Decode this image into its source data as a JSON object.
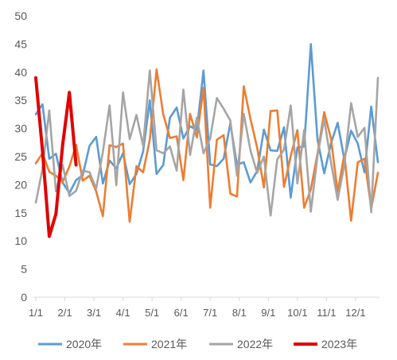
{
  "chart_data": {
    "type": "line",
    "ylim": [
      0,
      50
    ],
    "yticks": [
      0,
      5,
      10,
      15,
      20,
      25,
      30,
      35,
      40,
      45,
      50
    ],
    "xtick_labels": [
      "1/1",
      "2/1",
      "3/1",
      "4/1",
      "5/1",
      "6/1",
      "7/1",
      "8/1",
      "9/1",
      "10/1",
      "11/1",
      "12/1"
    ],
    "n_weeks": 52,
    "grid": false,
    "legend_position": "bottom",
    "series": [
      {
        "name": "2020年",
        "color": "#5B9BD5",
        "values": [
          32.5,
          34.3,
          24.6,
          25.5,
          20.4,
          18.5,
          20.8,
          21.7,
          26.9,
          28.5,
          20.2,
          24.3,
          22.9,
          25.6,
          20.1,
          21.9,
          25.9,
          35.0,
          21.9,
          23.5,
          31.9,
          33.7,
          28.2,
          30.4,
          29.7,
          40.3,
          23.6,
          23.3,
          24.6,
          30.9,
          23.5,
          24.0,
          20.4,
          22.4,
          29.8,
          26.1,
          26.0,
          30.2,
          17.7,
          26.6,
          26.8,
          45.0,
          28.0,
          22.0,
          27.3,
          31.0,
          24.5,
          29.6,
          27.3,
          22.2,
          33.9,
          24.0
        ]
      },
      {
        "name": "2021年",
        "color": "#ED7D31",
        "values": [
          23.8,
          25.6,
          22.3,
          21.6,
          20.5,
          23.2,
          27.1,
          20.7,
          21.6,
          18.8,
          14.4,
          27.0,
          26.7,
          27.3,
          13.4,
          23.3,
          22.2,
          28.0,
          40.5,
          32.5,
          28.3,
          28.6,
          20.8,
          32.6,
          28.4,
          37.2,
          15.9,
          28.0,
          28.8,
          18.4,
          17.9,
          37.5,
          31.7,
          26.6,
          19.5,
          33.1,
          33.2,
          19.6,
          25.1,
          29.7,
          15.9,
          19.2,
          25.5,
          32.9,
          28.2,
          18.7,
          25.4,
          13.6,
          24.0,
          24.6,
          15.8,
          22.1
        ]
      },
      {
        "name": "2022年",
        "color": "#A5A5A5",
        "values": [
          16.8,
          22.8,
          33.2,
          18.8,
          23.5,
          18.0,
          18.9,
          22.5,
          22.2,
          19.3,
          25.8,
          34.1,
          19.9,
          36.4,
          28.1,
          32.4,
          26.9,
          40.3,
          26.1,
          25.6,
          26.8,
          22.5,
          36.9,
          25.3,
          31.9,
          25.6,
          28.2,
          35.4,
          33.5,
          31.4,
          21.6,
          32.6,
          26.1,
          22.1,
          25.0,
          14.5,
          24.5,
          26.2,
          34.1,
          20.2,
          29.7,
          15.2,
          25.2,
          31.7,
          24.0,
          17.3,
          23.5,
          34.5,
          28.5,
          30.1,
          15.1,
          39.0
        ]
      },
      {
        "name": "2023年",
        "color": "#E00000",
        "values": [
          39.0,
          26.0,
          10.8,
          14.8,
          27.0,
          36.4,
          23.5
        ]
      }
    ]
  }
}
